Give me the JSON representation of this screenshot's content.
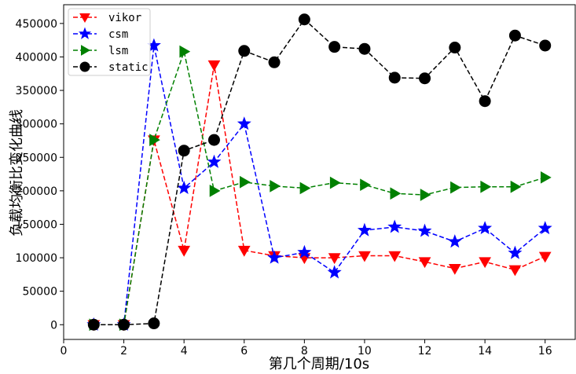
{
  "chart_data": {
    "type": "line",
    "xlabel": "第几个周期/10s",
    "ylabel": "负载均衡比变化曲线",
    "xlim": [
      0,
      17
    ],
    "ylim": [
      -22000,
      478000
    ],
    "xticks": [
      0,
      2,
      4,
      6,
      8,
      10,
      12,
      14,
      16
    ],
    "yticks": [
      0,
      50000,
      100000,
      150000,
      200000,
      250000,
      300000,
      350000,
      400000,
      450000
    ],
    "grid": false,
    "legend_position": "top-left",
    "x": [
      1,
      2,
      3,
      4,
      5,
      6,
      7,
      8,
      9,
      10,
      11,
      12,
      13,
      14,
      15,
      16
    ],
    "series": [
      {
        "name": "vikor",
        "color": "#ff0000",
        "marker": "triangle-down",
        "values": [
          0,
          0,
          276000,
          111000,
          388000,
          111000,
          103000,
          100000,
          100000,
          103000,
          103000,
          94000,
          84000,
          94000,
          82000,
          102000
        ]
      },
      {
        "name": "csm",
        "color": "#0000ff",
        "marker": "star",
        "values": [
          0,
          0,
          417000,
          204000,
          243000,
          300000,
          100000,
          108000,
          78000,
          141000,
          146000,
          140000,
          124000,
          144000,
          107000,
          144000
        ]
      },
      {
        "name": "lsm",
        "color": "#008000",
        "marker": "triangle-right",
        "values": [
          0,
          0,
          276000,
          408000,
          200000,
          213000,
          207000,
          204000,
          212000,
          209000,
          196000,
          194000,
          205000,
          206000,
          206000,
          220000
        ]
      },
      {
        "name": "static",
        "color": "#000000",
        "marker": "circle",
        "values": [
          0,
          0,
          2000,
          260000,
          276000,
          409000,
          392000,
          456000,
          415000,
          412000,
          369000,
          368000,
          414000,
          334000,
          432000,
          417000
        ]
      }
    ]
  }
}
